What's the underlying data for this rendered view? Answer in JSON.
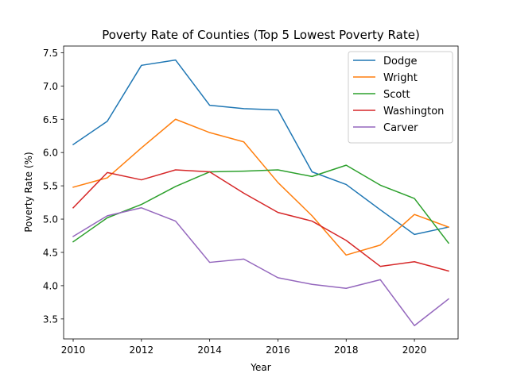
{
  "chart_data": {
    "type": "line",
    "title": "Poverty Rate of Counties (Top 5 Lowest Poverty Rate)",
    "xlabel": "Year",
    "ylabel": "Poverty Rate (%)",
    "xlim": [
      2009.72,
      2021.28
    ],
    "ylim": [
      3.2,
      7.6
    ],
    "xticks": [
      2010,
      2012,
      2014,
      2016,
      2018,
      2020
    ],
    "yticks": [
      3.5,
      4.0,
      4.5,
      5.0,
      5.5,
      6.0,
      6.5,
      7.0,
      7.5
    ],
    "grid": false,
    "legend_position": "top-right",
    "x": [
      2010,
      2011,
      2012,
      2013,
      2014,
      2015,
      2016,
      2017,
      2018,
      2019,
      2020,
      2021
    ],
    "series": [
      {
        "name": "Dodge",
        "color": "#1f77b4",
        "values": [
          6.12,
          6.47,
          7.31,
          7.39,
          6.71,
          6.66,
          6.64,
          5.71,
          5.52,
          5.14,
          4.77,
          4.88
        ]
      },
      {
        "name": "Wright",
        "color": "#ff7f0e",
        "values": [
          5.48,
          5.62,
          6.07,
          6.5,
          6.3,
          6.16,
          5.55,
          5.05,
          4.46,
          4.61,
          5.07,
          4.88
        ]
      },
      {
        "name": "Scott",
        "color": "#2ca02c",
        "values": [
          4.66,
          5.02,
          5.22,
          5.49,
          5.71,
          5.72,
          5.74,
          5.64,
          5.81,
          5.51,
          5.31,
          4.64
        ]
      },
      {
        "name": "Washington",
        "color": "#d62728",
        "values": [
          5.17,
          5.7,
          5.59,
          5.74,
          5.71,
          5.39,
          5.1,
          4.97,
          4.68,
          4.29,
          4.36,
          4.22
        ]
      },
      {
        "name": "Carver",
        "color": "#9467bd",
        "values": [
          4.74,
          5.05,
          5.17,
          4.97,
          4.35,
          4.4,
          4.12,
          4.02,
          3.96,
          4.09,
          3.4,
          3.8
        ]
      }
    ]
  }
}
